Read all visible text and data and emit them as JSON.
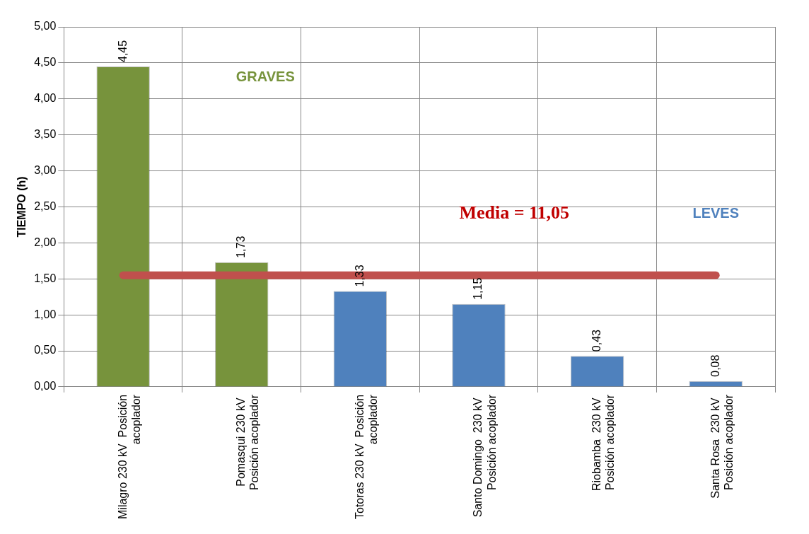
{
  "chart_data": {
    "type": "bar",
    "ylabel": "TIEMPO (h)",
    "categories": [
      "Milagro 230 kV  Posición acoplador",
      "Pomasqui 230 kV  Posición acoplador",
      "Totoras 230 kV  Posición acoplador",
      "Santo Domingo  230 kV  Posición acoplador",
      "Riobamba  230 kV  Posición acoplador",
      "Santa Rosa  230 kV  Posición acoplador"
    ],
    "values": [
      4.45,
      1.73,
      1.33,
      1.15,
      0.43,
      0.08
    ],
    "colors": [
      "#77933c",
      "#77933c",
      "#4f81bd",
      "#4f81bd",
      "#4f81bd",
      "#4f81bd"
    ],
    "value_labels": [
      "4,45",
      "1,73",
      "1,33",
      "1,15",
      "0,43",
      "0,08"
    ],
    "ylim": [
      0,
      5
    ],
    "yticks": [
      {
        "value": 0,
        "label": "0,00"
      },
      {
        "value": 0.5,
        "label": "0,50"
      },
      {
        "value": 1,
        "label": "1,00"
      },
      {
        "value": 1.5,
        "label": "1,50"
      },
      {
        "value": 2,
        "label": "2,00"
      },
      {
        "value": 2.5,
        "label": "2,50"
      },
      {
        "value": 3,
        "label": "3,00"
      },
      {
        "value": 3.5,
        "label": "3,50"
      },
      {
        "value": 4,
        "label": "4,00"
      },
      {
        "value": 4.5,
        "label": "4,50"
      },
      {
        "value": 5,
        "label": "5,00"
      }
    ],
    "ref_lines": [
      {
        "axis": "y",
        "value": 1.55,
        "color": "#c0504d"
      }
    ],
    "annotations": [
      "GRAVES",
      "LEVES",
      "Media = 11,05"
    ],
    "grid": true,
    "legend": false
  }
}
